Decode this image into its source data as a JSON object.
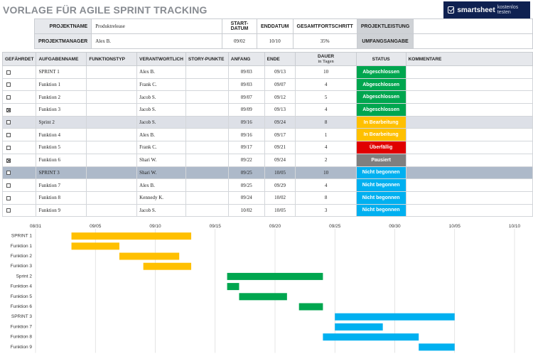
{
  "title": "VORLAGE FÜR AGILE SPRINT TRACKING",
  "brand": {
    "name": "smartsheet",
    "tagline": "kostenlos testen"
  },
  "project": {
    "name_label": "PROJEKTNAME",
    "name_value": "Produktrelease",
    "manager_label": "PROJEKTMANAGER",
    "manager_value": "Alex B.",
    "start_label": "START-DATUM",
    "start_value": "09/02",
    "end_label": "ENDDATUM",
    "end_value": "10/10",
    "progress_label": "GESAMTFORTSCHRITT",
    "progress_value": "35%",
    "performance_label": "PROJEKTLEISTUNG",
    "performance_value": "",
    "scope_label": "UMFANGSANGABE",
    "scope_value": ""
  },
  "columns": {
    "at_risk": "GEFÄHRDET",
    "task": "AUFGABENNAME",
    "feature_type": "FUNKTIONSTYP",
    "owner": "VERANTWORTLICH",
    "story_points": "STORY-PUNKTE",
    "start": "ANFANG",
    "end": "ENDE",
    "duration": "DAUER",
    "duration_sub": "in Tagen",
    "status": "STATUS",
    "comments": "KOMMENTARE"
  },
  "status_colors": {
    "Abgeschlossen": "#00a64f",
    "In Bearbeitung": "#ffc000",
    "Überfällig": "#e00000",
    "Pausiert": "#7f7f7f",
    "Nicht begonnen": "#00b0f0"
  },
  "rows": [
    {
      "at_risk": false,
      "task": "SPRINT 1",
      "type": "",
      "owner": "Alex B.",
      "points": "",
      "start": "09/03",
      "end": "09/13",
      "duration": "10",
      "status": "Abgeschlossen",
      "comments": "",
      "kind": "plain"
    },
    {
      "at_risk": false,
      "task": "Funktion 1",
      "type": "",
      "owner": "Frank C.",
      "points": "",
      "start": "09/03",
      "end": "09/07",
      "duration": "4",
      "status": "Abgeschlossen",
      "comments": "",
      "kind": "plain"
    },
    {
      "at_risk": false,
      "task": "Funktion 2",
      "type": "",
      "owner": "Jacob S.",
      "points": "",
      "start": "09/07",
      "end": "09/12",
      "duration": "5",
      "status": "Abgeschlossen",
      "comments": "",
      "kind": "plain"
    },
    {
      "at_risk": true,
      "task": "Funktion 3",
      "type": "",
      "owner": "Jacob S.",
      "points": "",
      "start": "09/09",
      "end": "09/13",
      "duration": "4",
      "status": "Abgeschlossen",
      "comments": "",
      "kind": "plain"
    },
    {
      "at_risk": false,
      "task": "Sprint 2",
      "type": "",
      "owner": "Jacob S.",
      "points": "",
      "start": "09/16",
      "end": "09/24",
      "duration": "8",
      "status": "In Bearbeitung",
      "comments": "",
      "kind": "sprint-light"
    },
    {
      "at_risk": false,
      "task": "Funktion 4",
      "type": "",
      "owner": "Alex B.",
      "points": "",
      "start": "09/16",
      "end": "09/17",
      "duration": "1",
      "status": "In Bearbeitung",
      "comments": "",
      "kind": "plain"
    },
    {
      "at_risk": false,
      "task": "Funktion 5",
      "type": "",
      "owner": "Frank C.",
      "points": "",
      "start": "09/17",
      "end": "09/21",
      "duration": "4",
      "status": "Überfällig",
      "comments": "",
      "kind": "plain"
    },
    {
      "at_risk": true,
      "task": "Funktion 6",
      "type": "",
      "owner": "Shari W.",
      "points": "",
      "start": "09/22",
      "end": "09/24",
      "duration": "2",
      "status": "Pausiert",
      "comments": "",
      "kind": "plain"
    },
    {
      "at_risk": false,
      "task": "SPRINT 3",
      "type": "",
      "owner": "Shari W.",
      "points": "",
      "start": "09/25",
      "end": "10/05",
      "duration": "10",
      "status": "Nicht begonnen",
      "comments": "",
      "kind": "sprint-dark"
    },
    {
      "at_risk": false,
      "task": "Funktion 7",
      "type": "",
      "owner": "Alex B.",
      "points": "",
      "start": "09/25",
      "end": "09/29",
      "duration": "4",
      "status": "Nicht begonnen",
      "comments": "",
      "kind": "plain"
    },
    {
      "at_risk": false,
      "task": "Funktion 8",
      "type": "",
      "owner": "Kennedy K.",
      "points": "",
      "start": "09/24",
      "end": "10/02",
      "duration": "8",
      "status": "Nicht begonnen",
      "comments": "",
      "kind": "plain"
    },
    {
      "at_risk": false,
      "task": "Funktion 9",
      "type": "",
      "owner": "Jacob S.",
      "points": "",
      "start": "10/02",
      "end": "10/05",
      "duration": "3",
      "status": "Nicht begonnen",
      "comments": "",
      "kind": "plain"
    }
  ],
  "chart_data": {
    "type": "bar",
    "orientation": "horizontal-gantt",
    "x_ticks": [
      "08/31",
      "09/05",
      "09/10",
      "09/15",
      "09/20",
      "09/25",
      "09/30",
      "10/05",
      "10/10"
    ],
    "xlim": [
      "08/31",
      "10/10"
    ],
    "categories": [
      "SPRINT 1",
      "Funktion 1",
      "Funktion 2",
      "Funktion 3",
      "Sprint 2",
      "Funktion 4",
      "Funktion 5",
      "Funktion 6",
      "SPRINT 3",
      "Funktion 7",
      "Funktion 8",
      "Funktion 9"
    ],
    "bars": [
      {
        "task": "SPRINT 1",
        "start": "09/03",
        "end": "09/13",
        "color": "#ffc000"
      },
      {
        "task": "Funktion 1",
        "start": "09/03",
        "end": "09/07",
        "color": "#ffc000"
      },
      {
        "task": "Funktion 2",
        "start": "09/07",
        "end": "09/12",
        "color": "#ffc000"
      },
      {
        "task": "Funktion 3",
        "start": "09/09",
        "end": "09/13",
        "color": "#ffc000"
      },
      {
        "task": "Sprint 2",
        "start": "09/16",
        "end": "09/24",
        "color": "#00a64f"
      },
      {
        "task": "Funktion 4",
        "start": "09/16",
        "end": "09/17",
        "color": "#00a64f"
      },
      {
        "task": "Funktion 5",
        "start": "09/17",
        "end": "09/21",
        "color": "#00a64f"
      },
      {
        "task": "Funktion 6",
        "start": "09/22",
        "end": "09/24",
        "color": "#00a64f"
      },
      {
        "task": "SPRINT 3",
        "start": "09/25",
        "end": "10/05",
        "color": "#00b0f0"
      },
      {
        "task": "Funktion 7",
        "start": "09/25",
        "end": "09/29",
        "color": "#00b0f0"
      },
      {
        "task": "Funktion 8",
        "start": "09/24",
        "end": "10/02",
        "color": "#00b0f0"
      },
      {
        "task": "Funktion 9",
        "start": "10/02",
        "end": "10/05",
        "color": "#00b0f0"
      }
    ],
    "grid": true,
    "title": "",
    "xlabel": "",
    "ylabel": ""
  }
}
